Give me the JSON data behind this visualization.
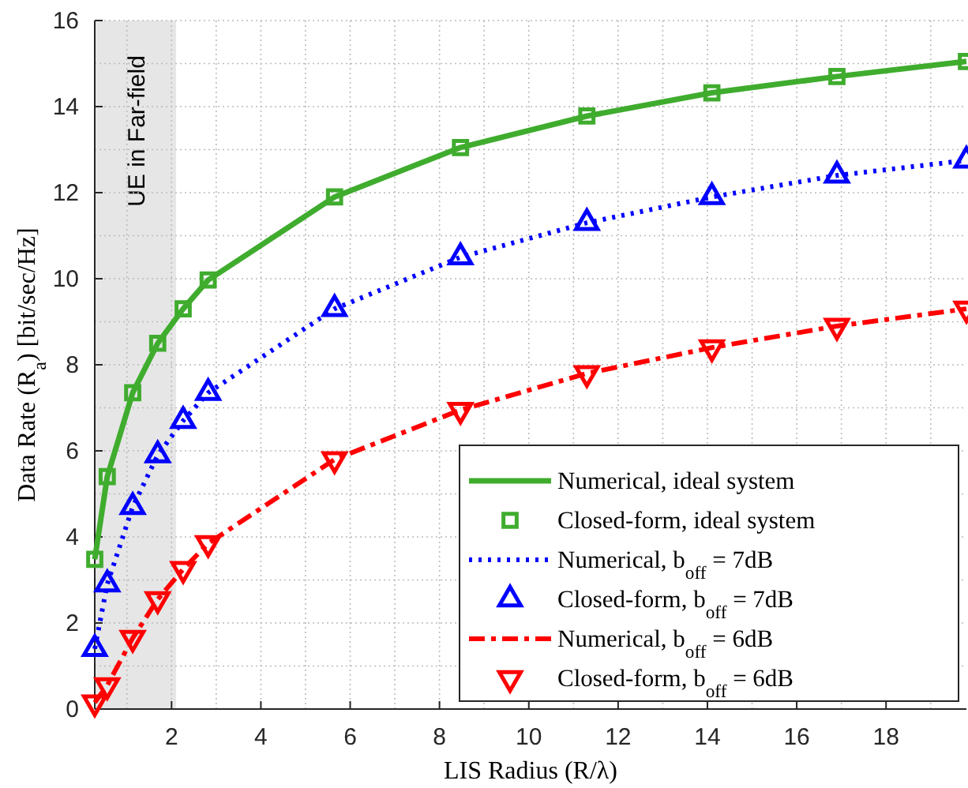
{
  "chart_data": {
    "type": "line",
    "xlabel": "LIS Radius (R/λ)",
    "ylabel": "Data Rate (R$_{a}$) [bit/sec/Hz]",
    "xlim": [
      0.28,
      19.8
    ],
    "xticks": [
      2,
      4,
      6,
      8,
      10,
      12,
      14,
      16,
      18
    ],
    "ylim": [
      0,
      16
    ],
    "yticks": [
      0,
      2,
      4,
      6,
      8,
      10,
      12,
      14,
      16
    ],
    "grid": true,
    "legend": "bottom right",
    "x": [
      0.28,
      0.56,
      1.13,
      1.69,
      2.26,
      2.82,
      5.65,
      8.47,
      11.3,
      14.1,
      16.9,
      19.8
    ],
    "bands": [
      {
        "axis": "x",
        "from": 0.28,
        "to": 2.1,
        "label": "UE in Far-field",
        "color": "#e6e6e6"
      }
    ],
    "series": [
      {
        "name": "Numerical, ideal system",
        "type": "line",
        "line_style": "solid",
        "marker": "none",
        "color": "#3fac2e",
        "values": [
          3.48,
          5.4,
          7.35,
          8.5,
          9.3,
          9.97,
          11.9,
          13.05,
          13.78,
          14.32,
          14.7,
          15.05
        ]
      },
      {
        "name": "Closed-form, ideal system",
        "type": "scatter",
        "marker": "square",
        "color": "#3fac2e",
        "values": [
          3.48,
          5.4,
          7.35,
          8.5,
          9.3,
          9.97,
          11.9,
          13.05,
          13.78,
          14.32,
          14.7,
          15.05
        ]
      },
      {
        "name": "Numerical, b$_{off}$ = 7dB",
        "type": "line",
        "line_style": "dotted",
        "marker": "none",
        "color": "#0000ff",
        "values": [
          1.4,
          2.9,
          4.7,
          5.9,
          6.7,
          7.35,
          9.3,
          10.5,
          11.3,
          11.9,
          12.4,
          12.75
        ]
      },
      {
        "name": "Closed-form, b$_{off}$ = 7dB",
        "type": "scatter",
        "marker": "triangle",
        "color": "#0000ff",
        "values": [
          1.4,
          2.9,
          4.7,
          5.9,
          6.7,
          7.35,
          9.3,
          10.5,
          11.3,
          11.9,
          12.4,
          12.75
        ]
      },
      {
        "name": "Numerical, b$_{off}$ = 6dB",
        "type": "line",
        "line_style": "dashed",
        "marker": "none",
        "color": "#ff0000",
        "values": [
          0.15,
          0.55,
          1.65,
          2.55,
          3.25,
          3.85,
          5.8,
          6.95,
          7.8,
          8.4,
          8.9,
          9.3
        ]
      },
      {
        "name": "Closed-form, b$_{off}$ = 6dB",
        "type": "scatter",
        "marker": "triangle-down",
        "color": "#ff0000",
        "values": [
          0.15,
          0.55,
          1.65,
          2.55,
          3.25,
          3.85,
          5.8,
          6.95,
          7.8,
          8.4,
          8.9,
          9.3
        ]
      }
    ]
  }
}
